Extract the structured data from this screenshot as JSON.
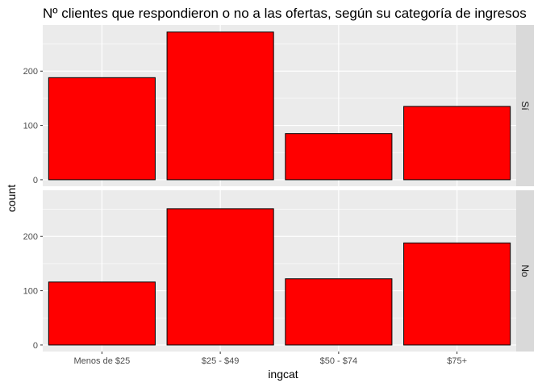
{
  "chart_data": {
    "type": "bar",
    "title": "Nº clientes que respondieron o no a las ofertas, según su categoría de ingresos",
    "xlabel": "ingcat",
    "ylabel": "count",
    "categories": [
      "Menos de $25",
      "$25 - $49",
      "$50 - $74",
      "$75+"
    ],
    "ylim": [
      -12,
      285
    ],
    "yticks": [
      0,
      100,
      200
    ],
    "grid": true,
    "facets": [
      {
        "label": "Sí",
        "values": [
          188,
          272,
          85,
          135
        ]
      },
      {
        "label": "No",
        "values": [
          116,
          251,
          122,
          188
        ]
      }
    ],
    "colors": {
      "bar_fill": "#ff0000",
      "bar_stroke": "#000000",
      "panel_bg": "#ebebeb",
      "strip_bg": "#d9d9d9",
      "grid": "#ffffff"
    }
  }
}
